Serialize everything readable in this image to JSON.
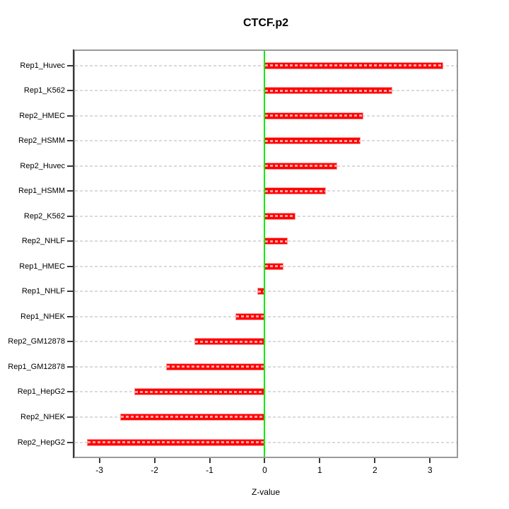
{
  "chart_data": {
    "type": "bar",
    "orientation": "horizontal",
    "title": "CTCF.p2",
    "xlabel": "Z-value",
    "ylabel": "",
    "categories": [
      "Rep1_Huvec",
      "Rep1_K562",
      "Rep2_HMEC",
      "Rep2_HSMM",
      "Rep2_Huvec",
      "Rep1_HSMM",
      "Rep2_K562",
      "Rep2_NHLF",
      "Rep1_HMEC",
      "Rep1_NHLF",
      "Rep1_NHEK",
      "Rep2_GM12878",
      "Rep1_GM12878",
      "Rep1_HepG2",
      "Rep2_NHEK",
      "Rep2_HepG2"
    ],
    "values": [
      3.24,
      2.32,
      1.79,
      1.74,
      1.31,
      1.11,
      0.56,
      0.42,
      0.34,
      -0.14,
      -0.53,
      -1.27,
      -1.79,
      -2.37,
      -2.62,
      -3.22
    ],
    "xlim": [
      -3.47,
      3.51
    ],
    "xticks": [
      -3,
      -2,
      -1,
      0,
      1,
      2,
      3
    ],
    "grid": "horizontal dashed line per category",
    "legend": "none",
    "colors": {
      "bar_fill": "#ff0000",
      "bar_border": "#ff9a9a",
      "zero_reference_line": "#00ee00",
      "plot_border": "#9a9a9a",
      "gridline": "#dadada",
      "axis_tick": "#3a3a3a",
      "text": "#000000"
    }
  }
}
